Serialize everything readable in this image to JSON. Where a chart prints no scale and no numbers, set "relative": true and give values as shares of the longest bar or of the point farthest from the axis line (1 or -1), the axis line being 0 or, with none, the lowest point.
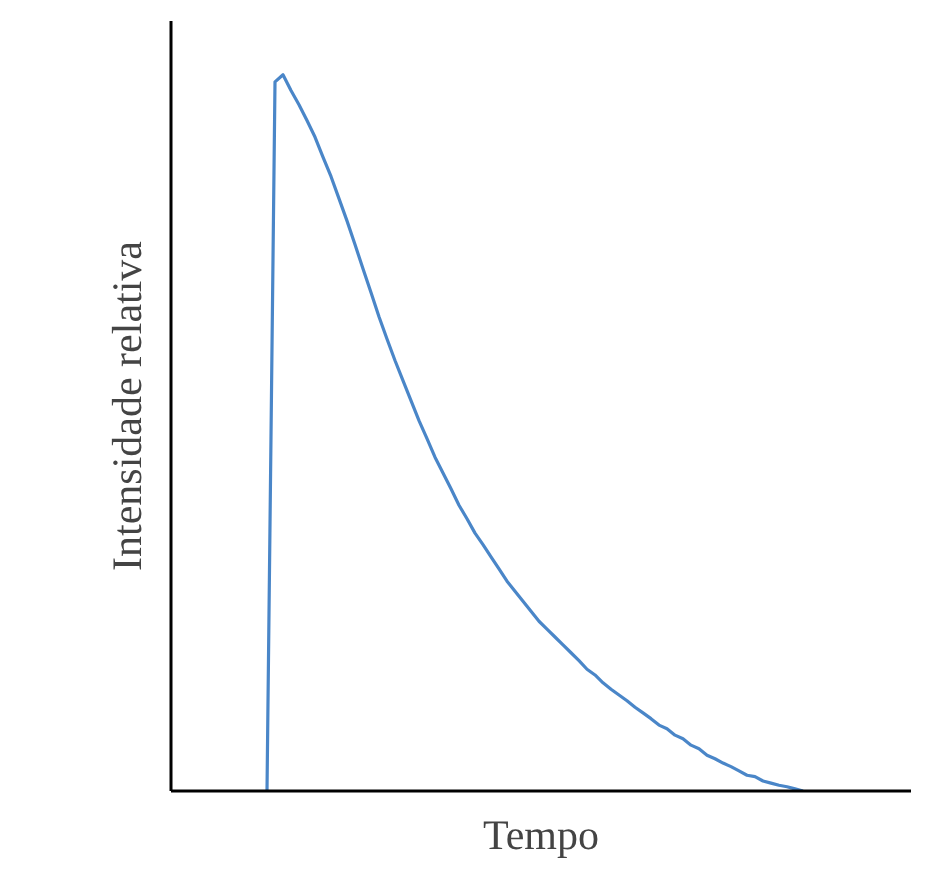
{
  "chart_data": {
    "type": "line",
    "relative": true,
    "xlabel": "Tempo",
    "ylabel": "Intensidade relativa",
    "categories": [
      null,
      null,
      null,
      null,
      null,
      null,
      null,
      null,
      null,
      null,
      null,
      null,
      null,
      null,
      null,
      null,
      null,
      null,
      null,
      null,
      null,
      null,
      null,
      null,
      null,
      null,
      null,
      null,
      null,
      null,
      null,
      null,
      null,
      null,
      null,
      null,
      null,
      null,
      null,
      null,
      null,
      null,
      null,
      null,
      null,
      null,
      null,
      null,
      null,
      null,
      null,
      null,
      null,
      null,
      null,
      null,
      null,
      null,
      null,
      null,
      null,
      null,
      null,
      null,
      null,
      null,
      null,
      null,
      null,
      null,
      null,
      null,
      null,
      null,
      null,
      null,
      null,
      null,
      null,
      null,
      null,
      null,
      null,
      null,
      null,
      null,
      null,
      null,
      null,
      null,
      null,
      null,
      null
    ],
    "series": [
      {
        "color": "#4a86c8",
        "values": [
          null,
          null,
          null,
          null,
          null,
          null,
          null,
          null,
          null,
          null,
          null,
          null,
          0,
          0.99,
          1.0,
          0.978,
          0.958,
          0.936,
          0.913,
          0.885,
          0.858,
          0.827,
          0.796,
          0.763,
          0.729,
          0.696,
          0.662,
          0.631,
          0.601,
          0.573,
          0.545,
          0.517,
          0.492,
          0.466,
          0.444,
          0.422,
          0.399,
          0.38,
          0.36,
          0.344,
          0.327,
          0.31,
          0.293,
          0.279,
          0.265,
          0.251,
          0.237,
          0.226,
          0.215,
          0.204,
          0.193,
          0.182,
          0.17,
          0.162,
          0.151,
          0.142,
          0.134,
          0.126,
          0.117,
          0.109,
          0.101,
          0.092,
          0.087,
          0.078,
          0.073,
          0.064,
          0.059,
          0.05,
          0.045,
          0.039,
          0.034,
          0.028,
          0.022,
          0.02,
          0.014,
          0.011,
          0.008,
          0.006,
          0.003,
          0,
          null,
          null,
          null,
          null,
          null,
          null,
          null,
          null,
          null,
          null,
          null,
          null,
          null
        ]
      }
    ]
  }
}
